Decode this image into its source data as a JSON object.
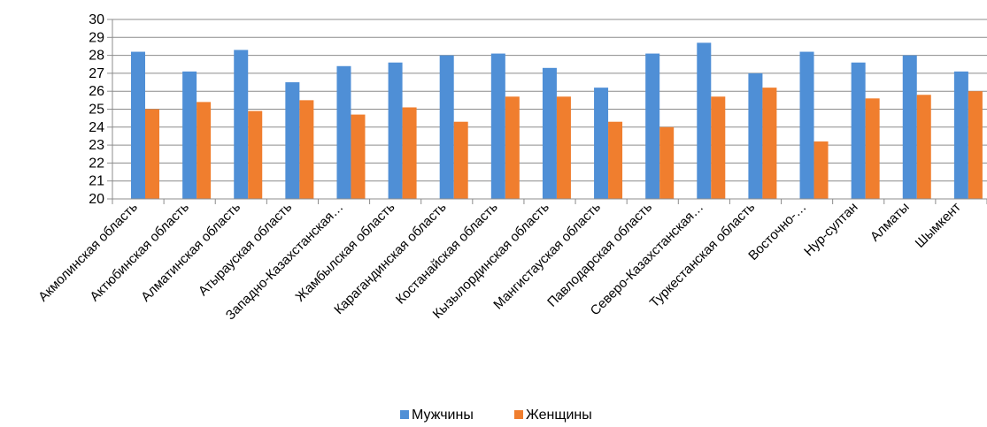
{
  "chart_data": {
    "type": "bar",
    "title": "",
    "xlabel": "",
    "ylabel": "",
    "ylim": [
      20,
      30
    ],
    "yticks": [
      "20",
      "21",
      "22",
      "23",
      "24",
      "25",
      "26",
      "27",
      "28",
      "29",
      "30"
    ],
    "grid": true,
    "legend_position": "bottom",
    "categories": [
      "Акмолинская область",
      "Актюбинская область",
      "Алматинская область",
      "Атырауская область",
      "Западно-Казахстанская…",
      "Жамбылская область",
      "Карагандинская область",
      "Костанайская область",
      "Кызылординская область",
      "Мангистауская область",
      "Павлодарская область",
      "Северо-Казахстанская…",
      "Туркестанская область",
      "Восточно-…",
      "Нур-султан",
      "Алматы",
      "Шымкент"
    ],
    "series": [
      {
        "name": "Мужчины",
        "color": "#4F8FD6",
        "values": [
          28.2,
          27.1,
          28.3,
          26.5,
          27.4,
          27.6,
          28.0,
          28.1,
          27.3,
          26.2,
          28.1,
          28.7,
          27.0,
          28.2,
          27.6,
          28.0,
          27.1
        ]
      },
      {
        "name": "Женщины",
        "color": "#F07E2E",
        "values": [
          25.0,
          25.4,
          24.9,
          25.5,
          24.7,
          25.1,
          24.3,
          25.7,
          25.7,
          24.3,
          24.0,
          25.7,
          26.2,
          23.2,
          25.6,
          25.8,
          26.0
        ]
      }
    ]
  }
}
